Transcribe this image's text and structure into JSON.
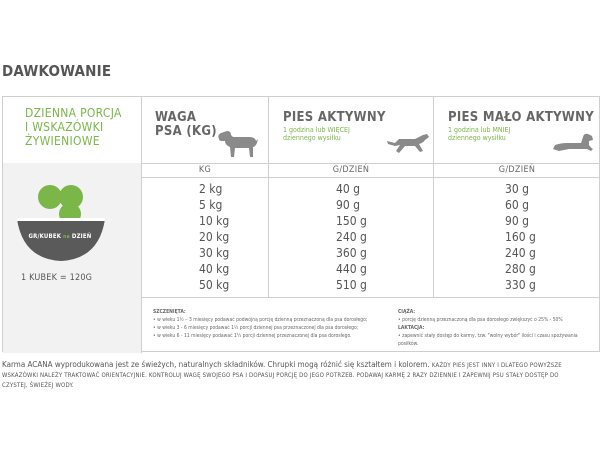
{
  "section_title": "DAWKOWANIE",
  "left_header": [
    "DZIENNA PORCJA",
    "I WSKAZÓWKI",
    "ŻYWIENIOWE"
  ],
  "bowl_label_main": "GR/KUBEK",
  "bowl_label_na": "na",
  "bowl_label_day": "DZIEŃ",
  "cup_info": "1 KUBEK = 120G",
  "columns": {
    "weight": {
      "title_line1": "WAGA",
      "title_line2": "PSA (KG)",
      "unit": "KG"
    },
    "active": {
      "title": "PIES AKTYWNY",
      "sub_line1": "1 godzina lub WIĘCEJ",
      "sub_line2": "dziennego wysiłku",
      "unit": "G/DZIEŃ"
    },
    "less_active": {
      "title": "PIES MAŁO AKTYWNY",
      "sub_line1": "1 godzina lub MNIEJ",
      "sub_line2": "dziennego wysiłku",
      "unit": "G/DZIEŃ"
    }
  },
  "rows": [
    {
      "weight": "2 kg",
      "active": "40 g",
      "less_active": "30 g"
    },
    {
      "weight": "5 kg",
      "active": "90 g",
      "less_active": "60 g"
    },
    {
      "weight": "10 kg",
      "active": "150 g",
      "less_active": "90 g"
    },
    {
      "weight": "20 kg",
      "active": "240 g",
      "less_active": "160 g"
    },
    {
      "weight": "30 kg",
      "active": "360 g",
      "less_active": "240 g"
    },
    {
      "weight": "40 kg",
      "active": "440 g",
      "less_active": "280 g"
    },
    {
      "weight": "50 kg",
      "active": "510 g",
      "less_active": "330 g"
    }
  ],
  "notes_left": {
    "heading": "SZCZENIĘTA:",
    "items": [
      "w wieku 1½ – 3 miesięcy podawać podwójną porcję dzienną przeznaczoną dla psa dorosłego;",
      "w wieku 3 - 6 miesięcy podawać 1½ porcji dziennej psa przeznaczonej dla psa dorosłego;",
      "w wieku 6 - 11 miesięcy podawać 1¼ porcji dziennej przeznaczonej dla psa dorosłego."
    ]
  },
  "notes_right": {
    "heading1": "CIĄŻA:",
    "item1": "porcję dzienną przeznaczoną dla psa dorosłego zwiększyć o 25% - 50%",
    "heading2": "LAKTACJA:",
    "item2": "zapewnić stały dostęp do karmy, tzw. \"wolny wybór\" ilości i czasu spożywania posiłków."
  },
  "footer": {
    "line1": "Karma ACANA wyprodukowana jest ze świeżych, naturalnych składników. Chrupki mogą różnić się kształtem i kolorem.",
    "line1_small": "KAŻDY PIES JEST INNY I DLATEGO POWYŻSZE",
    "line2": "WSKAZÓWKI NALEŻY TRAKTOWAĆ ORIENTACYJNIE. KONTROLUJ WAGĘ SWOJEGO PSA I DOPASUJ PORCJĘ DO JEGO POTRZEB. PODAWAJ KARMĘ 2 RAZY DZIENNIE I ZAPEWNIJ PSU STAŁY DOSTĘP DO",
    "line3": "CZYSTEJ, ŚWIEŻEJ WODY."
  },
  "colors": {
    "accent_green": "#7ab648",
    "border": "#cfcfcf",
    "text": "#555555",
    "bowl": "#5a5a5a"
  },
  "icons": [
    "dog-standing-icon",
    "dog-running-icon",
    "dog-lying-icon",
    "bowl-icon"
  ]
}
